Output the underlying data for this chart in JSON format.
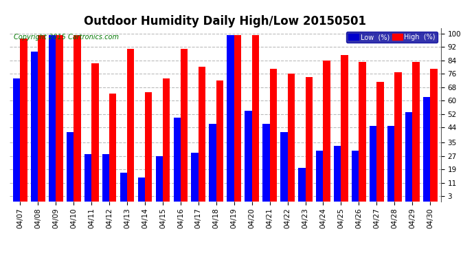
{
  "title": "Outdoor Humidity Daily High/Low 20150501",
  "copyright": "Copyright 2015 Cartronics.com",
  "dates": [
    "04/07",
    "04/08",
    "04/09",
    "04/10",
    "04/11",
    "04/12",
    "04/13",
    "04/14",
    "04/15",
    "04/16",
    "04/17",
    "04/18",
    "04/19",
    "04/20",
    "04/21",
    "04/22",
    "04/23",
    "04/24",
    "04/25",
    "04/26",
    "04/27",
    "04/28",
    "04/29",
    "04/30"
  ],
  "high": [
    97,
    99,
    99,
    99,
    82,
    64,
    91,
    65,
    73,
    91,
    80,
    72,
    99,
    99,
    79,
    76,
    74,
    84,
    87,
    83,
    71,
    77,
    83,
    79
  ],
  "low": [
    73,
    89,
    99,
    41,
    28,
    28,
    17,
    14,
    27,
    50,
    29,
    46,
    99,
    54,
    46,
    41,
    20,
    30,
    33,
    30,
    45,
    45,
    53,
    62
  ],
  "ylim": [
    0,
    103
  ],
  "yticks": [
    3,
    11,
    19,
    27,
    35,
    44,
    52,
    60,
    68,
    76,
    84,
    92,
    100
  ],
  "bar_width": 0.4,
  "high_color": "#ff0000",
  "low_color": "#0000ff",
  "bg_color": "#ffffff",
  "plot_bg_color": "#ffffff",
  "grid_color": "#bbbbbb",
  "title_fontsize": 12,
  "copyright_fontsize": 7,
  "tick_fontsize": 7.5,
  "legend_bg_color": "#000099",
  "legend_high_color": "#ff0000",
  "legend_low_color": "#0000cd"
}
